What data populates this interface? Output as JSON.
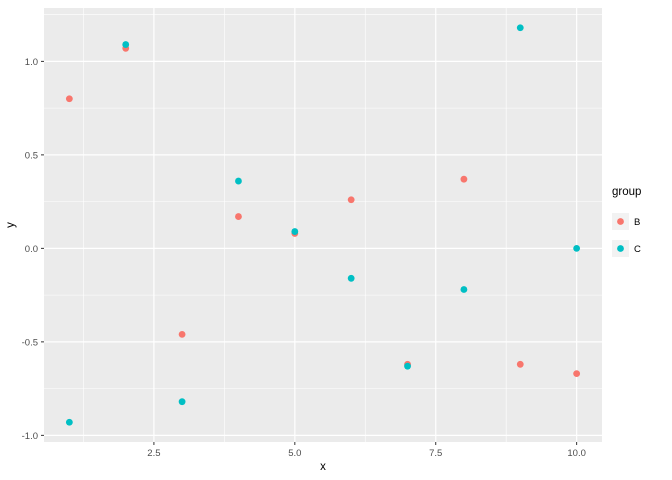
{
  "chart_data": {
    "type": "scatter",
    "title": "",
    "xlabel": "x",
    "ylabel": "y",
    "xlim": [
      0.55,
      10.45
    ],
    "ylim": [
      -1.0355,
      1.2855
    ],
    "x_ticks": [
      2.5,
      5.0,
      7.5,
      10.0
    ],
    "x_tick_labels": [
      "2.5",
      "5.0",
      "7.5",
      "10.0"
    ],
    "x_minor_ticks": [
      1.25,
      3.75,
      6.25,
      8.75
    ],
    "y_ticks": [
      -1.0,
      -0.5,
      0.0,
      0.5,
      1.0
    ],
    "y_tick_labels": [
      "-1.0",
      "-0.5",
      "0.0",
      "0.5",
      "1.0"
    ],
    "y_minor_ticks": [
      -0.75,
      -0.25,
      0.25,
      0.75,
      1.25
    ],
    "grid": true,
    "legend": {
      "title": "group",
      "position": "right",
      "entries": [
        {
          "label": "B",
          "color": "#F8766D"
        },
        {
          "label": "C",
          "color": "#00BFC4"
        }
      ]
    },
    "series": [
      {
        "name": "B",
        "color": "#F8766D",
        "points": [
          [
            1,
            0.8
          ],
          [
            2,
            1.07
          ],
          [
            3,
            -0.46
          ],
          [
            4,
            0.17
          ],
          [
            5,
            0.08
          ],
          [
            6,
            0.26
          ],
          [
            7,
            -0.62
          ],
          [
            8,
            0.37
          ],
          [
            9,
            -0.62
          ],
          [
            10,
            -0.67
          ]
        ]
      },
      {
        "name": "C",
        "color": "#00BFC4",
        "points": [
          [
            1,
            -0.93
          ],
          [
            2,
            1.09
          ],
          [
            3,
            -0.82
          ],
          [
            4,
            0.36
          ],
          [
            5,
            0.09
          ],
          [
            6,
            -0.16
          ],
          [
            7,
            -0.63
          ],
          [
            8,
            -0.22
          ],
          [
            9,
            1.18
          ],
          [
            10,
            0.0
          ]
        ]
      }
    ]
  },
  "colors": {
    "background": "#FFFFFF",
    "panel": "#EBEBEB",
    "grid_major": "#FFFFFF",
    "grid_minor": "#FFFFFF",
    "tick_text": "#4D4D4D",
    "tick_mark": "#333333",
    "axis_title": "#000000",
    "legend_key_bg": "#F2F2F2"
  }
}
